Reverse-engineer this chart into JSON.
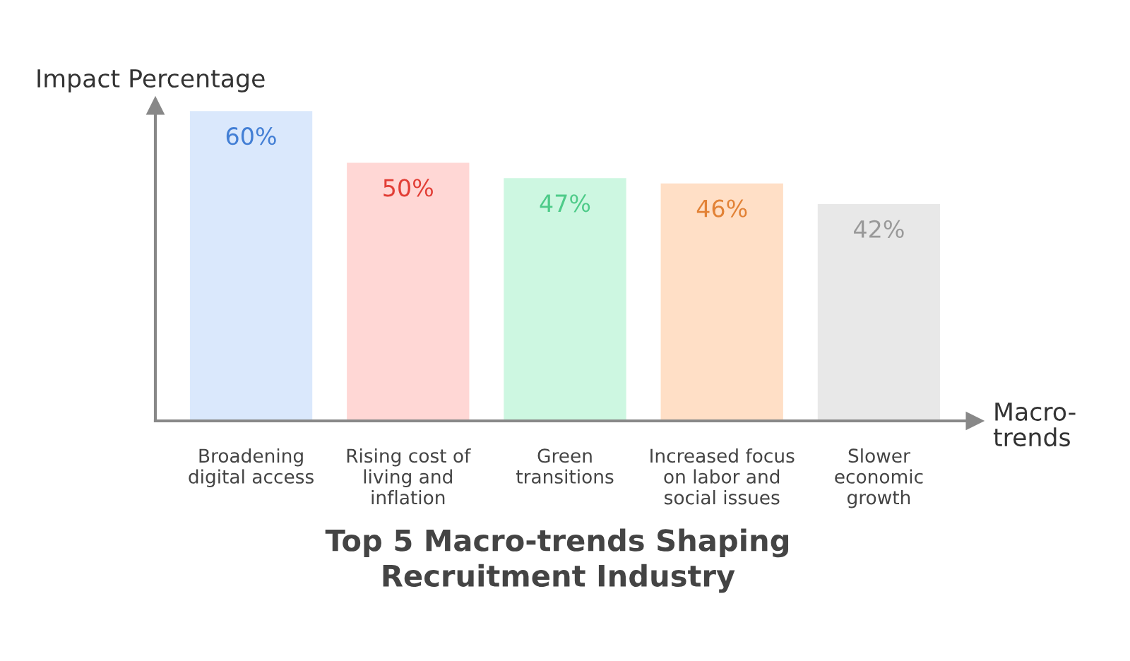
{
  "chart_data": {
    "type": "bar",
    "title": "Top 5 Macro-trends Shaping\nRecruitment Industry",
    "xlabel": "Macro-\ntrends",
    "ylabel": "Impact Percentage",
    "categories": [
      "Broadening\ndigital access",
      "Rising cost of\nliving and\ninflation",
      "Green\ntransitions",
      "Increased focus\non labor and\nsocial issues",
      "Slower\neconomic\ngrowth"
    ],
    "values": [
      60,
      50,
      47,
      46,
      42
    ],
    "colors": [
      "#dae8fc",
      "#ffd7d5",
      "#cdf7e1",
      "#ffdfc6",
      "#e8e8e8"
    ],
    "value_labels": [
      "60%",
      "50%",
      "47%",
      "46%",
      "42%"
    ],
    "ylim": [
      0,
      61
    ],
    "tick_labels": "x",
    "grid": false,
    "legend": false
  }
}
